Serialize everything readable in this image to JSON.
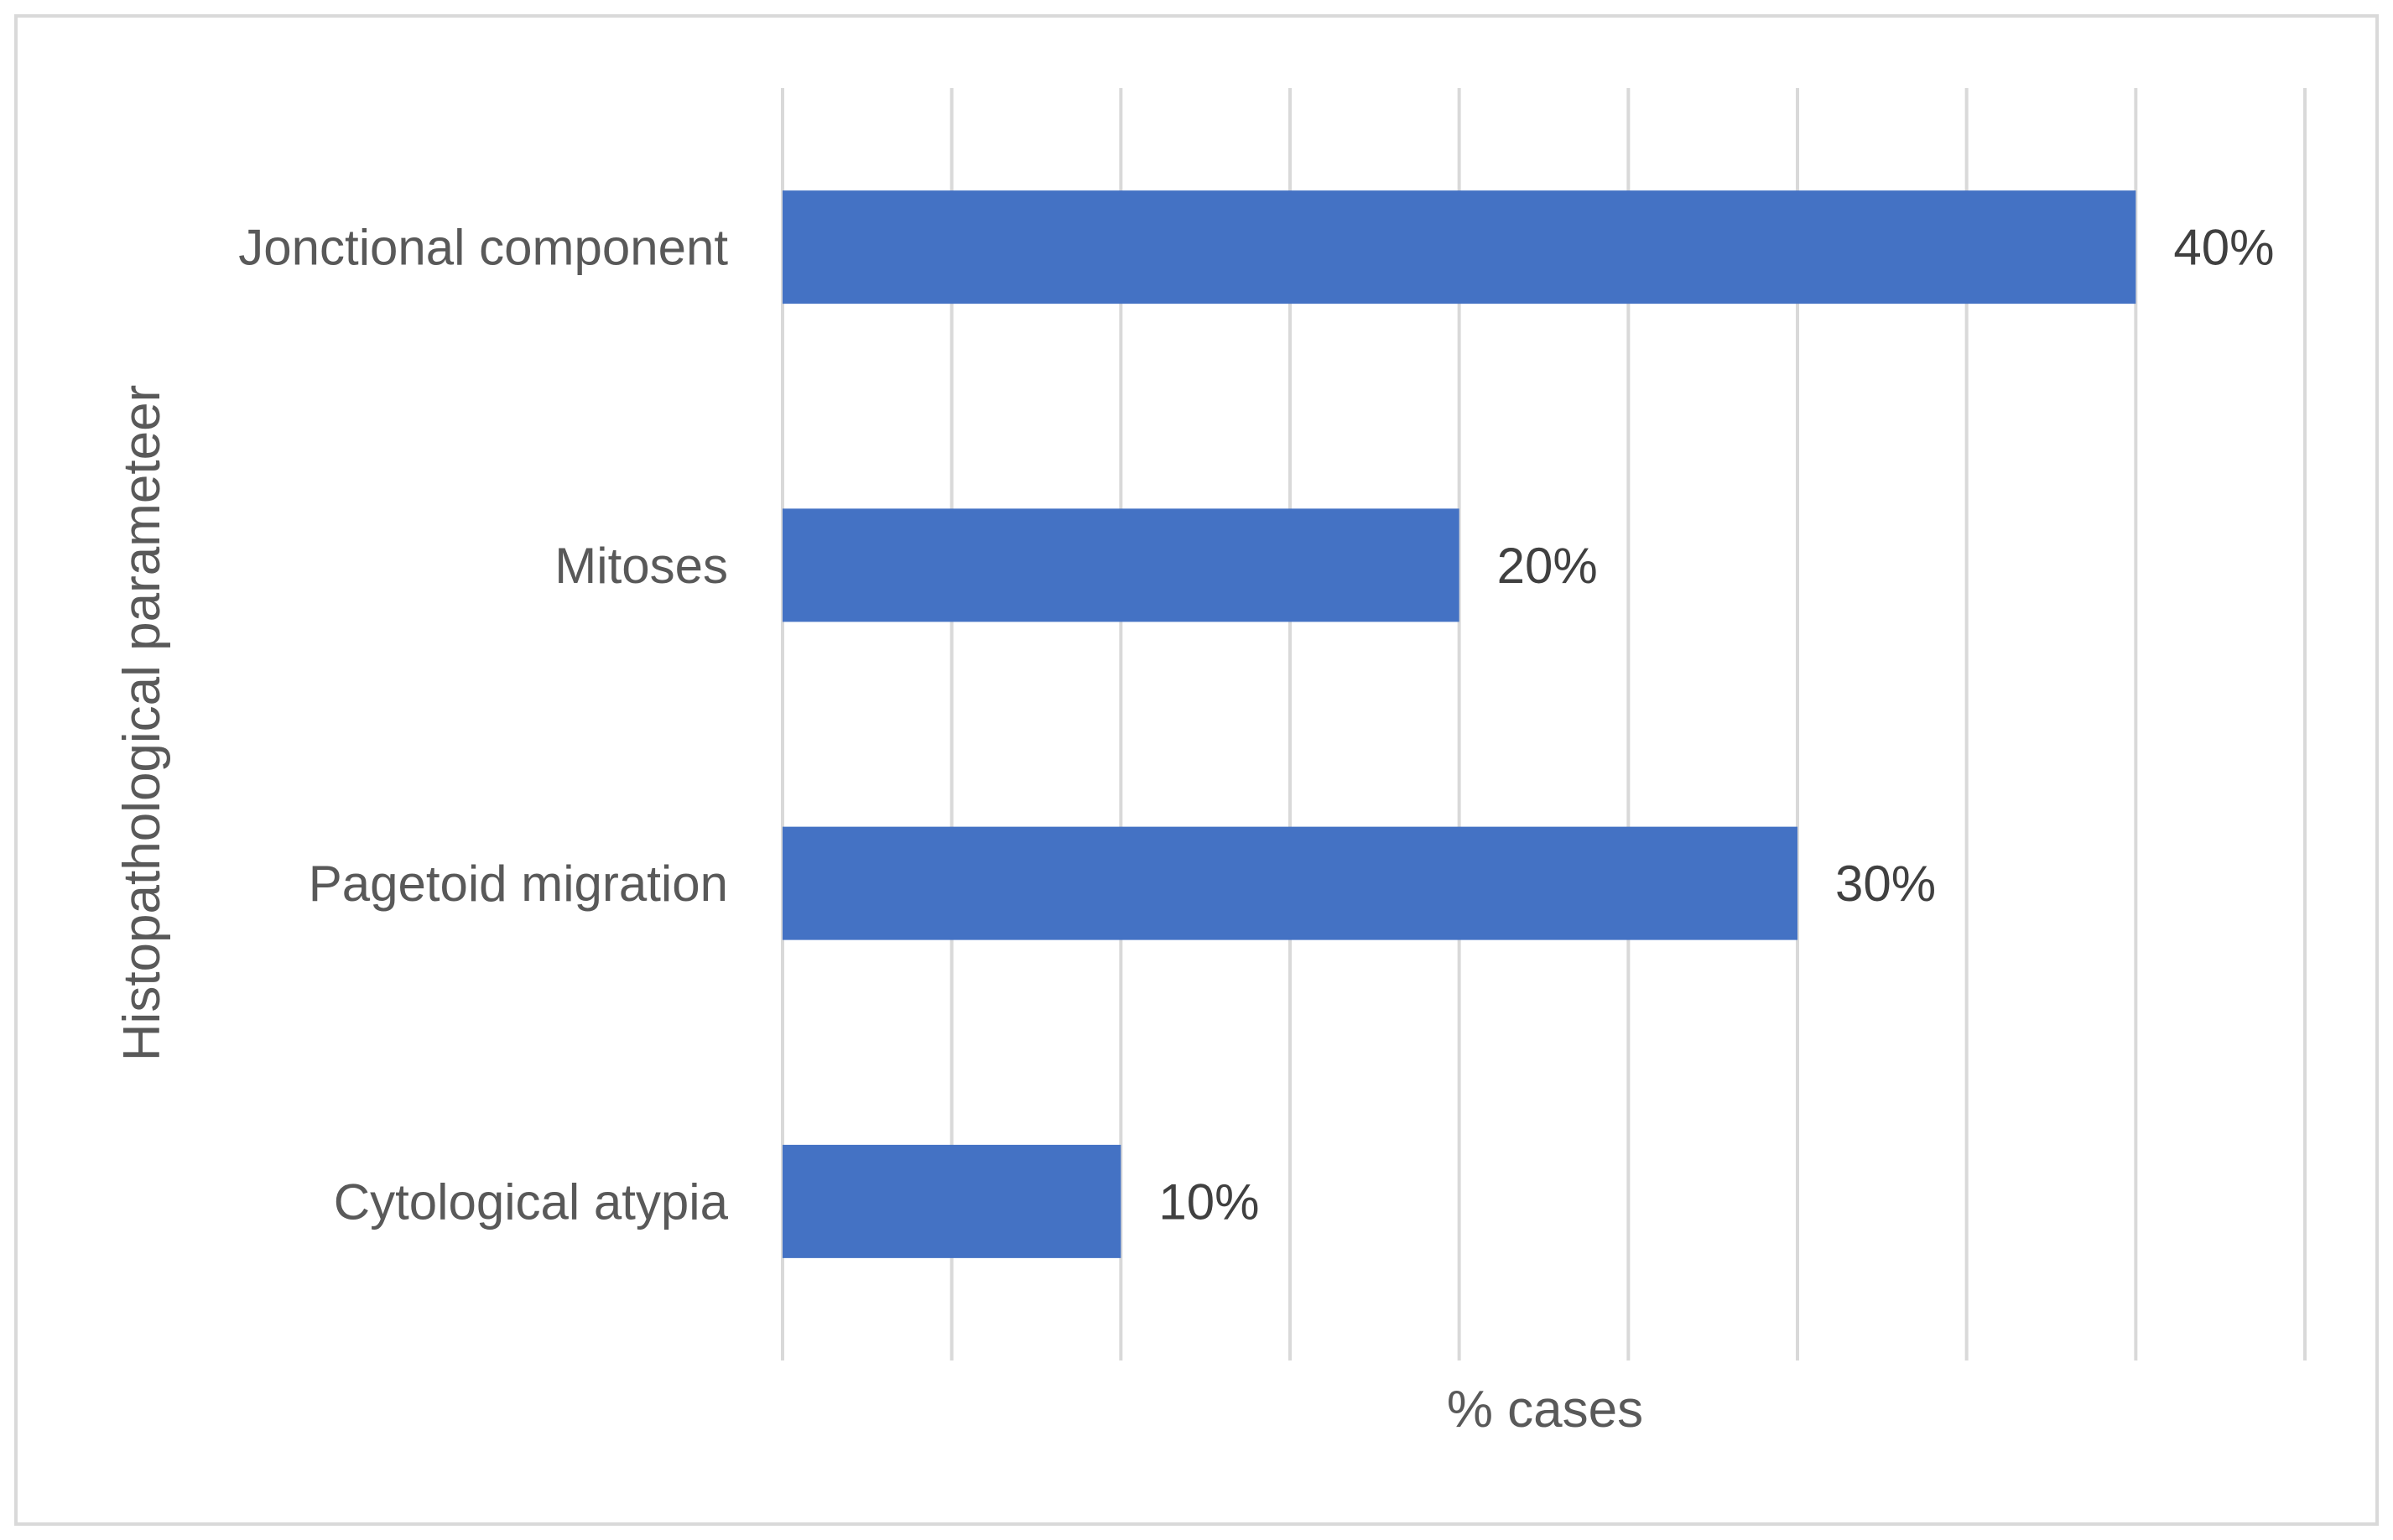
{
  "chart_data": {
    "type": "bar",
    "orientation": "horizontal",
    "categories": [
      "Jonctional component",
      "Mitoses",
      "Pagetoid migration",
      "Cytological atypia"
    ],
    "values": [
      40,
      20,
      30,
      10
    ],
    "data_labels": [
      "40%",
      "20%",
      "30%",
      "10%"
    ],
    "title": "",
    "xlabel": "% cases",
    "ylabel": "Histopathological parameteer",
    "xlim": [
      0,
      45
    ],
    "x_gridline_step": 5,
    "x_tick_labels_shown": false,
    "grid": true,
    "legend": "none",
    "bar_color": "#4472C4",
    "gridline_color": "#D9D9D9",
    "border_color": "#D9D9D9"
  }
}
